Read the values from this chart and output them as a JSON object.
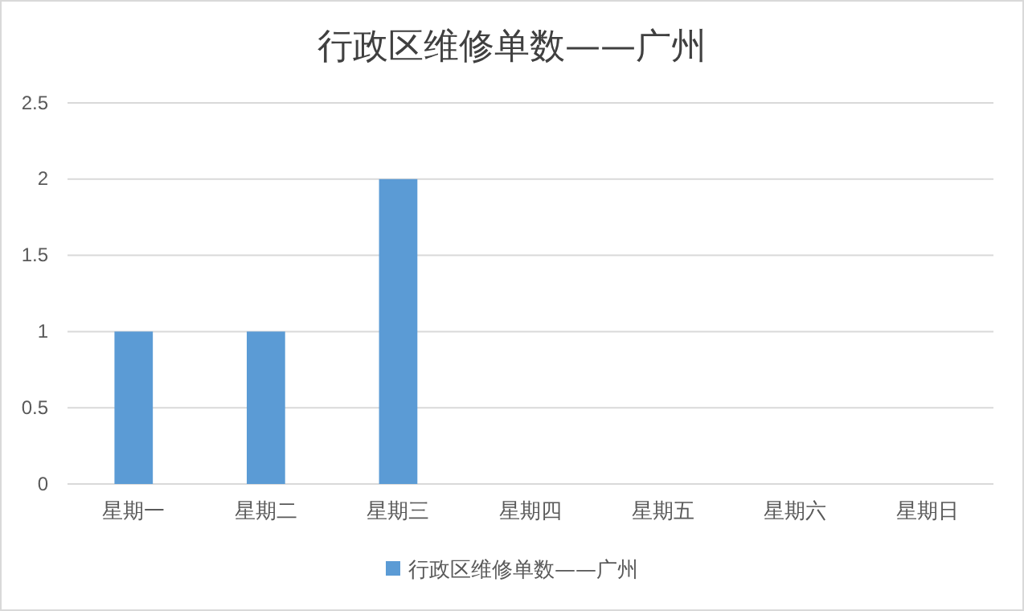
{
  "chart_data": {
    "type": "bar",
    "title": "行政区维修单数——广州",
    "categories": [
      "星期一",
      "星期二",
      "星期三",
      "星期四",
      "星期五",
      "星期六",
      "星期日"
    ],
    "series": [
      {
        "name": "行政区维修单数——广州",
        "color": "#5b9bd5",
        "values": [
          1,
          1,
          2,
          0,
          0,
          0,
          0
        ]
      }
    ],
    "ylim": [
      0,
      2.5
    ],
    "yticks": [
      0,
      0.5,
      1,
      1.5,
      2,
      2.5
    ],
    "grid": "y",
    "legend": "bottom"
  }
}
